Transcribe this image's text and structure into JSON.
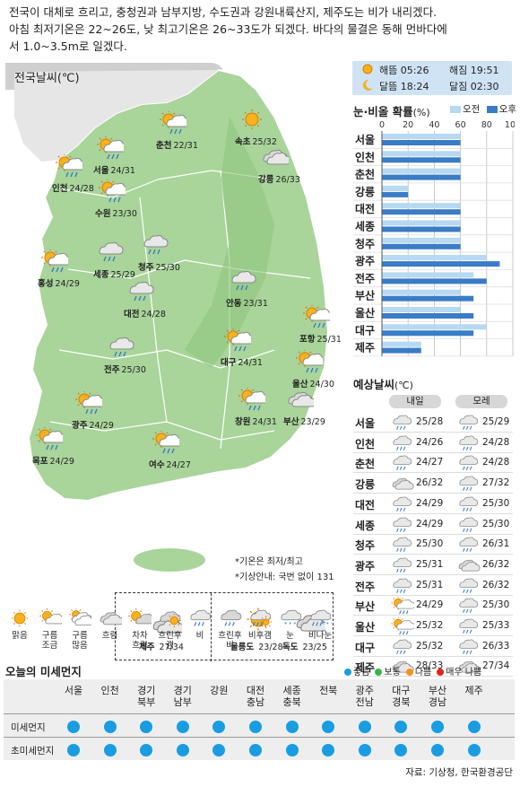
{
  "intro": [
    "전국이 대체로 흐리고, 충청권과 남부지방, 수도권과 강원내륙산지, 제주도는 비가 내리겠다.",
    "아침 최저기온은 22~26도, 낮 최고기온은 26~33도가 되겠다. 바다의 물결은 동해 먼바다에",
    "서 1.0~3.5m로 일겠다."
  ],
  "map": {
    "title": "전국날씨(℃)",
    "cities": [
      {
        "name": "속초",
        "temp": "25/32",
        "icon": "sunny"
      },
      {
        "name": "춘천",
        "temp": "22/31",
        "icon": "partly-cloudy-rain"
      },
      {
        "name": "서울",
        "temp": "24/31",
        "icon": "partly-cloudy-rain"
      },
      {
        "name": "인천",
        "temp": "24/28",
        "icon": "partly-cloudy-rain"
      },
      {
        "name": "수원",
        "temp": "23/30",
        "icon": "partly-cloudy-rain"
      },
      {
        "name": "강릉",
        "temp": "26/33",
        "icon": "cloudy"
      },
      {
        "name": "홍성",
        "temp": "24/29",
        "icon": "partly-cloudy-rain"
      },
      {
        "name": "세종",
        "temp": "25/29",
        "icon": "rain"
      },
      {
        "name": "청주",
        "temp": "25/30",
        "icon": "rain"
      },
      {
        "name": "대전",
        "temp": "24/28",
        "icon": "rain"
      },
      {
        "name": "안동",
        "temp": "23/31",
        "icon": "rain"
      },
      {
        "name": "포항",
        "temp": "25/31",
        "icon": "partly-cloudy-rain"
      },
      {
        "name": "전주",
        "temp": "25/30",
        "icon": "rain"
      },
      {
        "name": "대구",
        "temp": "24/31",
        "icon": "partly-cloudy-rain"
      },
      {
        "name": "울산",
        "temp": "24/30",
        "icon": "partly-cloudy-rain"
      },
      {
        "name": "광주",
        "temp": "24/29",
        "icon": "partly-cloudy-rain"
      },
      {
        "name": "창원",
        "temp": "24/31",
        "icon": "partly-cloudy-rain"
      },
      {
        "name": "부산",
        "temp": "23/29",
        "icon": "cloudy"
      },
      {
        "name": "목포",
        "temp": "24/29",
        "icon": "partly-cloudy-rain"
      },
      {
        "name": "여수",
        "temp": "24/27",
        "icon": "partly-cloudy-rain"
      }
    ],
    "notes": [
      "*기온은 최저/최고",
      "*기상안내: 국번 없이 131"
    ],
    "islands": [
      {
        "name": "제주",
        "temp": "27/34",
        "icon": "cloudy"
      },
      {
        "name": "울릉도",
        "temp": "23/28",
        "icon": "sunny"
      },
      {
        "name": "독도",
        "temp": "23/25",
        "icon": "cloudy"
      }
    ]
  },
  "sun": {
    "sunrise_label": "해뜸",
    "sunrise": "05:26",
    "sunset_label": "해짐",
    "sunset": "19:51",
    "moonrise_label": "달뜸",
    "moonrise": "18:24",
    "moonset_label": "달짐",
    "moonset": "02:30"
  },
  "precip": {
    "title": "눈·비올 확률",
    "unit": "(%)",
    "legend_am": "오전",
    "legend_pm": "오후",
    "color_am": "#b7d9f2",
    "color_pm": "#3a7cc6"
  },
  "chart_data": {
    "type": "bar",
    "orientation": "horizontal",
    "title": "눈·비올 확률(%)",
    "categories": [
      "서울",
      "인천",
      "춘천",
      "강릉",
      "대전",
      "세종",
      "청주",
      "광주",
      "전주",
      "부산",
      "울산",
      "대구",
      "제주"
    ],
    "series": [
      {
        "name": "오전",
        "values": [
          60,
          60,
          60,
          20,
          60,
          60,
          60,
          80,
          70,
          60,
          60,
          80,
          30
        ]
      },
      {
        "name": "오후",
        "values": [
          60,
          60,
          60,
          20,
          60,
          60,
          60,
          90,
          80,
          70,
          70,
          70,
          30
        ]
      }
    ],
    "xlim": [
      0,
      100
    ],
    "xticks": [
      0,
      20,
      40,
      60,
      80,
      100
    ],
    "grid": true,
    "legend": "top-right"
  },
  "forecast": {
    "title": "예상날씨",
    "unit": "(℃)",
    "day1": "내일",
    "day2": "모레",
    "rows": [
      {
        "city": "서울",
        "d1": "25/28",
        "i1": "rain",
        "d2": "25/29",
        "i2": "rain"
      },
      {
        "city": "인천",
        "d1": "24/26",
        "i1": "rain",
        "d2": "24/28",
        "i2": "rain"
      },
      {
        "city": "춘천",
        "d1": "24/27",
        "i1": "rain",
        "d2": "24/28",
        "i2": "rain"
      },
      {
        "city": "강릉",
        "d1": "26/32",
        "i1": "cloudy",
        "d2": "27/32",
        "i2": "rain"
      },
      {
        "city": "대전",
        "d1": "24/29",
        "i1": "rain",
        "d2": "25/30",
        "i2": "rain"
      },
      {
        "city": "세종",
        "d1": "24/29",
        "i1": "rain",
        "d2": "25/30",
        "i2": "rain"
      },
      {
        "city": "청주",
        "d1": "25/30",
        "i1": "rain",
        "d2": "26/31",
        "i2": "rain"
      },
      {
        "city": "광주",
        "d1": "25/31",
        "i1": "rain",
        "d2": "26/32",
        "i2": "cloudy"
      },
      {
        "city": "전주",
        "d1": "25/31",
        "i1": "rain",
        "d2": "26/32",
        "i2": "rain"
      },
      {
        "city": "부산",
        "d1": "24/29",
        "i1": "partly-cloudy-rain",
        "d2": "25/30",
        "i2": "rain"
      },
      {
        "city": "울산",
        "d1": "25/32",
        "i1": "partly-cloudy-rain",
        "d2": "25/33",
        "i2": "rain"
      },
      {
        "city": "대구",
        "d1": "25/32",
        "i1": "rain",
        "d2": "26/33",
        "i2": "rain"
      },
      {
        "city": "제주",
        "d1": "28/33",
        "i1": "cloudy",
        "d2": "27/34",
        "i2": "cloudy"
      }
    ]
  },
  "legend_items": [
    {
      "label": "맑음",
      "icon": "sunny"
    },
    {
      "label": "구름 조금",
      "icon": "partly-cloudy"
    },
    {
      "label": "구름 많음",
      "icon": "mostly-cloudy"
    },
    {
      "label": "흐림",
      "icon": "cloudy"
    },
    {
      "label": "차차 흐림",
      "icon": "gradually-cloudy"
    },
    {
      "label": "흐린후 갬",
      "icon": "clearing"
    },
    {
      "label": "비",
      "icon": "rain"
    },
    {
      "label": "흐린후 비",
      "icon": "cloudy-then-rain"
    },
    {
      "label": "비후갬",
      "icon": "rain-then-clear"
    },
    {
      "label": "눈",
      "icon": "snow"
    },
    {
      "label": "비나눈",
      "icon": "rain-or-snow"
    }
  ],
  "dust": {
    "title": "오늘의 미세먼지",
    "legend": [
      {
        "label": "좋음",
        "color": "#1a9de0"
      },
      {
        "label": "보통",
        "color": "#3bb54a"
      },
      {
        "label": "나쁨",
        "color": "#f7941d"
      },
      {
        "label": "매우 나쁨",
        "color": "#e2231a"
      }
    ],
    "regions": [
      "서울",
      "인천",
      "경기 북부",
      "경기 남부",
      "강원",
      "대전 충남",
      "세종 충북",
      "전북",
      "광주 전남",
      "대구 경북",
      "부산 경남",
      "제주"
    ],
    "rows": [
      {
        "label": "미세먼지",
        "levels": [
          "좋음",
          "좋음",
          "좋음",
          "좋음",
          "좋음",
          "좋음",
          "좋음",
          "좋음",
          "좋음",
          "좋음",
          "좋음",
          "좋음"
        ]
      },
      {
        "label": "초미세먼지",
        "levels": [
          "좋음",
          "좋음",
          "좋음",
          "좋음",
          "좋음",
          "좋음",
          "좋음",
          "좋음",
          "좋음",
          "좋음",
          "좋음",
          "좋음"
        ]
      }
    ]
  },
  "source": "자료: 기상청, 한국환경공단"
}
